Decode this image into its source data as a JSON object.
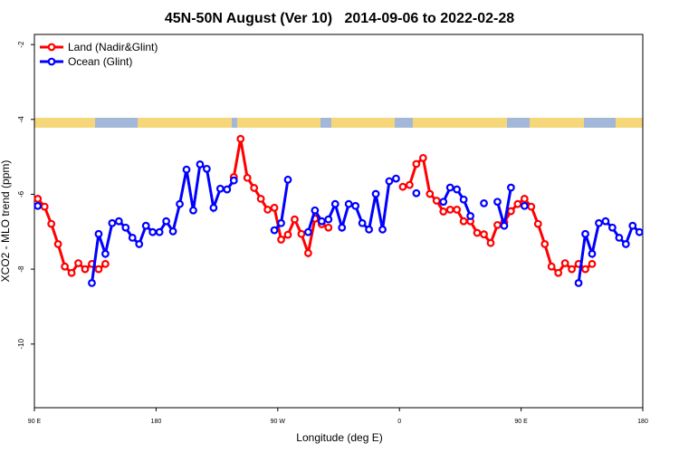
{
  "chart_data": {
    "type": "line",
    "title": "45N-50N August (Ver 10)   2014-09-06 to 2022-02-28",
    "x_label": "Longitude (deg E)",
    "y_label": "XCO2 - MLO trend (ppm)",
    "xlim": [
      90,
      540
    ],
    "xticks": [
      {
        "value": 90,
        "label": "90 E"
      },
      {
        "value": 180,
        "label": "180"
      },
      {
        "value": 270,
        "label": "90 W"
      },
      {
        "value": 360,
        "label": "0"
      },
      {
        "value": 450,
        "label": "90 E"
      },
      {
        "value": 540,
        "label": "180"
      }
    ],
    "ylim": [
      -11.7,
      -1.73
    ],
    "yticks": [
      -2,
      -4,
      -6,
      -8,
      -10
    ],
    "legend": "top-left",
    "x": [
      92.5,
      97.5,
      102.5,
      107.5,
      112.5,
      117.5,
      122.5,
      127.5,
      132.5,
      137.5,
      142.5,
      147.5,
      152.5,
      157.5,
      162.5,
      167.5,
      172.5,
      177.5,
      182.5,
      187.5,
      192.5,
      197.5,
      202.5,
      207.5,
      212.5,
      217.5,
      222.5,
      227.5,
      232.5,
      237.5,
      242.5,
      247.5,
      252.5,
      257.5,
      262.5,
      267.5,
      272.5,
      277.5,
      282.5,
      287.5,
      292.5,
      297.5,
      302.5,
      307.5,
      312.5,
      317.5,
      322.5,
      327.5,
      332.5,
      337.5,
      342.5,
      347.5,
      352.5,
      357.5,
      362.5,
      367.5,
      372.5,
      377.5,
      382.5,
      387.5,
      392.5,
      397.5,
      402.5,
      407.5,
      412.5,
      417.5,
      422.5,
      427.5,
      432.5,
      437.5,
      442.5,
      447.5,
      452.5,
      457.5,
      462.5,
      467.5,
      472.5,
      477.5,
      482.5,
      487.5,
      492.5,
      497.5,
      502.5,
      507.5,
      512.5,
      517.5,
      522.5,
      527.5,
      532.5,
      537.5
    ],
    "series": [
      {
        "name": "Land (Nadir&Glint)",
        "color": "#ff0000",
        "values": [
          -6.12,
          -6.33,
          -6.79,
          -7.33,
          -7.93,
          -8.1,
          -7.84,
          -8.0,
          -7.86,
          -8.0,
          -7.86,
          null,
          null,
          null,
          null,
          null,
          null,
          null,
          null,
          null,
          null,
          null,
          null,
          null,
          null,
          null,
          null,
          null,
          null,
          -5.54,
          -4.52,
          -5.56,
          -5.83,
          -6.12,
          -6.41,
          -6.36,
          -7.21,
          -7.08,
          -6.67,
          -7.06,
          -7.57,
          -6.65,
          -6.8,
          -6.89,
          null,
          null,
          null,
          null,
          null,
          null,
          null,
          null,
          null,
          null,
          -5.8,
          -5.75,
          -5.19,
          -5.03,
          -5.99,
          -6.17,
          -6.46,
          -6.41,
          -6.41,
          -6.72,
          -6.72,
          -7.03,
          -7.07,
          -7.3,
          -6.82,
          -6.75,
          -6.45,
          -6.26,
          -6.12,
          -6.33,
          -6.79,
          -7.33,
          -7.93,
          -8.1,
          -7.84,
          -8.0,
          -7.86,
          -8.0,
          -7.86,
          null,
          null,
          null,
          null,
          null,
          null,
          null
        ]
      },
      {
        "name": "Ocean (Glint)",
        "color": "#0000ff",
        "values": [
          -6.31,
          null,
          null,
          null,
          null,
          null,
          null,
          null,
          -8.37,
          -7.06,
          -7.59,
          -6.77,
          -6.72,
          -6.89,
          -7.16,
          -7.33,
          -6.84,
          -7.01,
          -7.01,
          -6.72,
          -6.99,
          -6.26,
          -5.34,
          -6.43,
          -5.2,
          -5.32,
          -6.36,
          -5.85,
          -5.87,
          -5.63,
          null,
          null,
          null,
          null,
          null,
          -6.96,
          -6.77,
          -5.61,
          null,
          null,
          -7.01,
          -6.43,
          -6.72,
          -6.67,
          -6.26,
          -6.89,
          -6.26,
          -6.31,
          -6.77,
          -6.94,
          -5.99,
          -6.94,
          -5.65,
          -5.58,
          null,
          null,
          -5.97,
          null,
          null,
          null,
          -6.2,
          -5.82,
          -5.87,
          -6.14,
          -6.58,
          null,
          -6.24,
          null,
          -6.2,
          -6.84,
          -5.82,
          null,
          -6.31,
          null,
          null,
          null,
          null,
          null,
          null,
          null,
          -8.37,
          -7.06,
          -7.59,
          -6.77,
          -6.72,
          -6.89,
          -7.16,
          -7.33,
          -6.84,
          -7.01
        ]
      }
    ]
  }
}
